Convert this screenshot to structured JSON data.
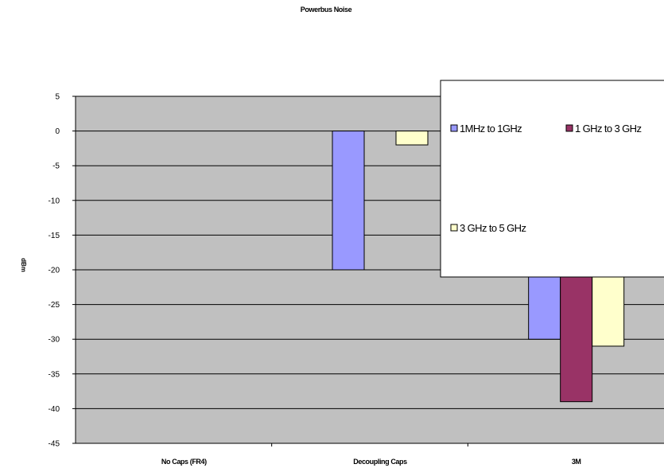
{
  "chart_data": {
    "type": "bar",
    "title": "Powerbus Noise",
    "xlabel": "",
    "ylabel": "dBm",
    "categories": [
      "No Caps (FR4)",
      "Decoupling Caps",
      "3M"
    ],
    "series": [
      {
        "name": "1MHz to 1GHz",
        "values": [
          0,
          -20,
          -30
        ],
        "color": "#9999ff"
      },
      {
        "name": "1 GHz to 3 GHz",
        "values": [
          0,
          0,
          -39
        ],
        "color": "#993366"
      },
      {
        "name": "3 GHz to 5 GHz",
        "values": [
          0,
          -2,
          -31
        ],
        "color": "#ffffcc"
      }
    ],
    "ylim": [
      -45,
      5
    ],
    "yticks": [
      5,
      0,
      -5,
      -10,
      -15,
      -20,
      -25,
      -30,
      -35,
      -40,
      -45
    ],
    "grid": true,
    "plot_background": "#c0c0c0",
    "legend_position": "top-right"
  }
}
